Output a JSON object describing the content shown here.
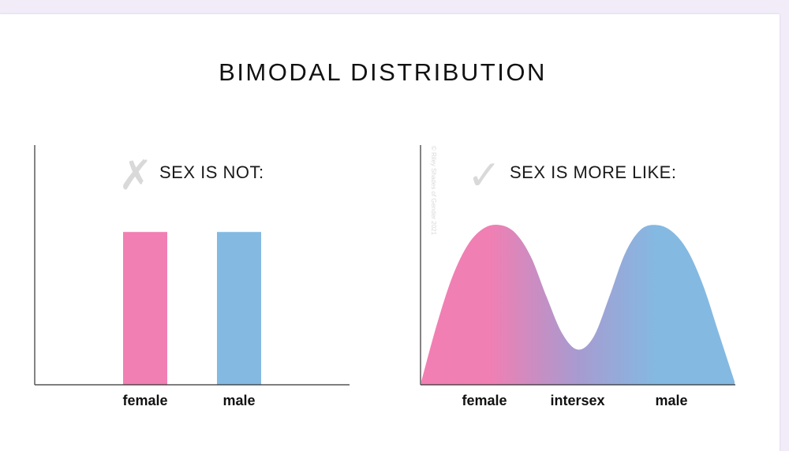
{
  "page": {
    "title": "BIMODAL DISTRIBUTION"
  },
  "colors": {
    "female": "#f17fb3",
    "male": "#84b9e2",
    "intersex_mid": "#a79bd0",
    "axis": "#333333",
    "mark": "#d9d9d9"
  },
  "icons": {
    "cross": "cross-mark-icon",
    "check": "check-mark-icon"
  },
  "chart_data": [
    {
      "type": "bar",
      "verdict_mark": "✗",
      "verdict_label": "SEX IS NOT:",
      "categories": [
        "female",
        "male"
      ],
      "values": [
        1.0,
        1.0
      ],
      "ylim": [
        0,
        1.6
      ],
      "grid": false
    },
    {
      "type": "area",
      "verdict_mark": "✓",
      "verdict_label": "SEX IS MORE LIKE:",
      "credit": "© Riley Shades of Gender 2021",
      "categories": [
        "female",
        "intersex",
        "male"
      ],
      "x": [
        0,
        0.05,
        0.1,
        0.15,
        0.2,
        0.25,
        0.3,
        0.35,
        0.4,
        0.45,
        0.5,
        0.55,
        0.6,
        0.65,
        0.7,
        0.75,
        0.8,
        0.85,
        0.9,
        0.95,
        1.0
      ],
      "values": [
        0.02,
        0.38,
        0.68,
        0.88,
        0.98,
        1.0,
        0.95,
        0.8,
        0.55,
        0.32,
        0.22,
        0.3,
        0.55,
        0.82,
        0.97,
        1.0,
        0.96,
        0.84,
        0.62,
        0.32,
        0.02
      ],
      "ylim": [
        0,
        1.5
      ],
      "grid": false
    }
  ]
}
